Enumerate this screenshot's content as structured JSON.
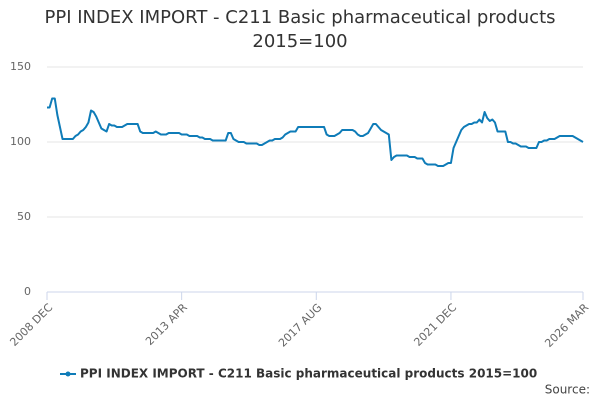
{
  "chart_data": {
    "type": "line",
    "title": "PPI INDEX IMPORT - C211 Basic pharmaceutical products 2015=100",
    "source": "Source:",
    "categories": [
      "2008 DEC",
      null,
      null,
      null,
      null,
      null,
      null,
      null,
      null,
      null,
      null,
      null,
      null,
      null,
      null,
      null,
      null,
      null,
      null,
      null,
      null,
      null,
      null,
      null,
      null,
      null,
      null,
      null,
      null,
      null,
      null,
      null,
      null,
      null,
      null,
      null,
      null,
      null,
      null,
      null,
      null,
      null,
      null,
      null,
      null,
      null,
      null,
      null,
      null,
      null,
      null,
      null,
      "2013 APR",
      null,
      null,
      null,
      null,
      null,
      null,
      null,
      null,
      null,
      null,
      null,
      null,
      null,
      null,
      null,
      null,
      null,
      null,
      null,
      null,
      null,
      null,
      null,
      null,
      null,
      null,
      null,
      null,
      null,
      null,
      null,
      null,
      null,
      null,
      null,
      null,
      null,
      null,
      null,
      null,
      null,
      null,
      null,
      null,
      null,
      null,
      null,
      null,
      null,
      null,
      null,
      "2017 AUG",
      null,
      null,
      null,
      null,
      null,
      null,
      null,
      null,
      null,
      null,
      null,
      null,
      null,
      null,
      null,
      null,
      null,
      null,
      null,
      null,
      null,
      null,
      null,
      null,
      null,
      null,
      null,
      null,
      null,
      null,
      null,
      null,
      null,
      null,
      null,
      null,
      null,
      null,
      null,
      null,
      null,
      null,
      null,
      null,
      null,
      null,
      null,
      null,
      null,
      null,
      null,
      "2021 DEC",
      null,
      null,
      null,
      null,
      null,
      null,
      null,
      null,
      null,
      null,
      null,
      null,
      null,
      null,
      null,
      null,
      null,
      null,
      null,
      null,
      null,
      null,
      null,
      null,
      null,
      null,
      null,
      null,
      null,
      null,
      null,
      null,
      null,
      null,
      null,
      null,
      null,
      null,
      null,
      null,
      null,
      null,
      null,
      null,
      null,
      null,
      null,
      null,
      null,
      null,
      "2026 MAR"
    ],
    "series": [
      {
        "name": "PPI INDEX IMPORT - C211 Basic pharmaceutical products 2015=100",
        "color": "#0f7cb8",
        "values": [
          123,
          123,
          129,
          129,
          118,
          110,
          102,
          102,
          102,
          102,
          102,
          104,
          105,
          107,
          108,
          110,
          113,
          121,
          120,
          117,
          113,
          109,
          108,
          107,
          112,
          111,
          111,
          110,
          110,
          110,
          111,
          112,
          112,
          112,
          112,
          112,
          107,
          106,
          106,
          106,
          106,
          106,
          107,
          106,
          105,
          105,
          105,
          106,
          106,
          106,
          106,
          106,
          105,
          105,
          105,
          104,
          104,
          104,
          104,
          103,
          103,
          102,
          102,
          102,
          101,
          101,
          101,
          101,
          101,
          101,
          106,
          106,
          102,
          101,
          100,
          100,
          100,
          99,
          99,
          99,
          99,
          99,
          98,
          98,
          99,
          100,
          101,
          101,
          102,
          102,
          102,
          103,
          105,
          106,
          107,
          107,
          107,
          110,
          110,
          110,
          110,
          110,
          110,
          110,
          110,
          110,
          110,
          110,
          105,
          104,
          104,
          104,
          105,
          106,
          108,
          108,
          108,
          108,
          108,
          107,
          105,
          104,
          104,
          105,
          106,
          109,
          112,
          112,
          110,
          108,
          107,
          106,
          105,
          88,
          90,
          91,
          91,
          91,
          91,
          91,
          90,
          90,
          90,
          89,
          89,
          89,
          86,
          85,
          85,
          85,
          85,
          84,
          84,
          84,
          85,
          86,
          86,
          96,
          100,
          104,
          108,
          110,
          111,
          112,
          112,
          113,
          113,
          115,
          113,
          120,
          116,
          114,
          115,
          113,
          107,
          107,
          107,
          107,
          100,
          100,
          99,
          99,
          98,
          97,
          97,
          97,
          96,
          96,
          96,
          96,
          100,
          100,
          101,
          101,
          102,
          102,
          102,
          103,
          104,
          104,
          104,
          104,
          104,
          104,
          103,
          102,
          101,
          100
        ]
      }
    ],
    "ylim": [
      0,
      150
    ],
    "yticks": [
      0,
      50,
      100,
      150
    ],
    "grid": true
  }
}
